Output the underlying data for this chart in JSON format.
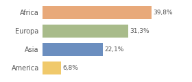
{
  "categories": [
    "America",
    "Asia",
    "Europa",
    "Africa"
  ],
  "values": [
    6.8,
    22.1,
    31.3,
    39.8
  ],
  "labels": [
    "6,8%",
    "22,1%",
    "31,3%",
    "39,8%"
  ],
  "bar_colors": [
    "#f0c96b",
    "#6b8ebf",
    "#a8bb8a",
    "#e8a97a"
  ],
  "background_color": "#ffffff",
  "xlim": [
    0,
    46
  ],
  "label_fontsize": 6.5,
  "tick_fontsize": 7.0,
  "bar_height": 0.72
}
